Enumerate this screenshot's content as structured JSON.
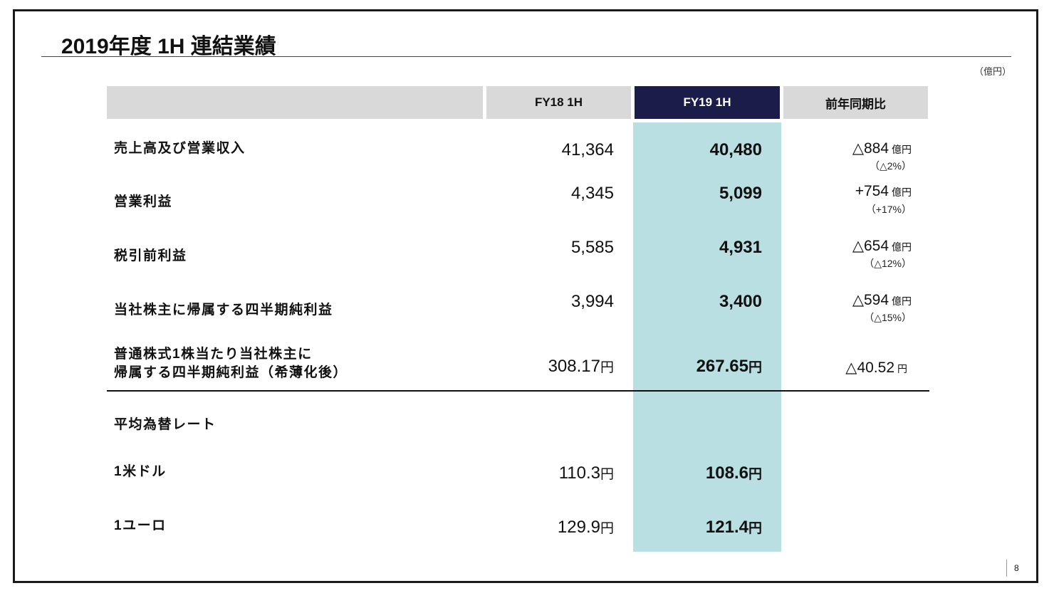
{
  "slide": {
    "title": "2019年度 1H 連結業績",
    "unit": "（億円）",
    "page_number": "8"
  },
  "table": {
    "headers": {
      "blank": "",
      "fy18": "FY18 1H",
      "fy19": "FY19 1H",
      "yoy": "前年同期比"
    },
    "rows": [
      {
        "label": "売上高及び営業収入",
        "fy18": "41,364",
        "fy19": "40,480",
        "change": "△884",
        "change_unit": "億円",
        "pct": "（△2%）"
      },
      {
        "label": "営業利益",
        "fy18": "4,345",
        "fy19": "5,099",
        "change": "+754",
        "change_unit": "億円",
        "pct": "（+17%）"
      },
      {
        "label": "税引前利益",
        "fy18": "5,585",
        "fy19": "4,931",
        "change": "△654",
        "change_unit": "億円",
        "pct": "（△12%）"
      },
      {
        "label": "当社株主に帰属する四半期純利益",
        "fy18": "3,994",
        "fy19": "3,400",
        "change": "△594",
        "change_unit": "億円",
        "pct": "（△15%）"
      },
      {
        "label_line1": "普通株式1株当たり当社株主に",
        "label_line2": "帰属する四半期純利益（希薄化後）",
        "fy18": "308.17",
        "fy18_unit": "円",
        "fy19": "267.65",
        "fy19_unit": "円",
        "change": "△40.52",
        "change_unit": "円"
      }
    ],
    "fx": {
      "heading": "平均為替レート",
      "rows": [
        {
          "label": "1米ドル",
          "fy18": "110.3",
          "fy18_unit": "円",
          "fy19": "108.6",
          "fy19_unit": "円"
        },
        {
          "label": "1ユーロ",
          "fy18": "129.9",
          "fy18_unit": "円",
          "fy19": "121.4",
          "fy19_unit": "円"
        }
      ]
    }
  },
  "colors": {
    "header_gray": "#d9d9d9",
    "header_navy": "#1b1c4a",
    "highlight": "#b9dfe2"
  }
}
